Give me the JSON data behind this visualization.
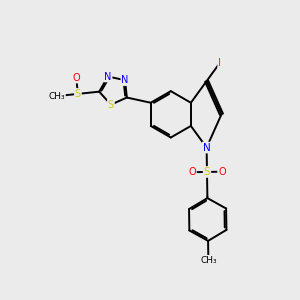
{
  "background_color": "#ebebeb",
  "atom_colors": {
    "N": "#0000ff",
    "S": "#cccc00",
    "O": "#ff0000",
    "I": "#ff00ff"
  },
  "bond_color": "#000000",
  "bond_width": 1.4,
  "figsize": [
    3.0,
    3.0
  ],
  "dpi": 100,
  "xlim": [
    0,
    10
  ],
  "ylim": [
    0,
    10
  ]
}
